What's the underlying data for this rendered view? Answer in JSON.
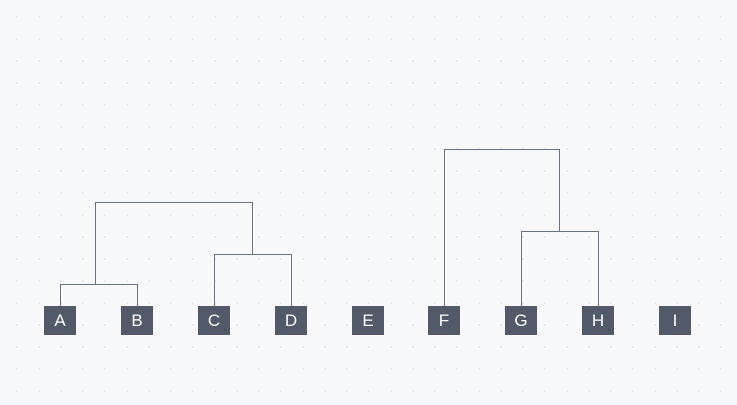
{
  "diagram": {
    "leaves": [
      "A",
      "B",
      "C",
      "D",
      "E",
      "F",
      "G",
      "H",
      "I"
    ],
    "colors": {
      "leaf_fill": "#525a69",
      "leaf_text": "#ffffff",
      "link": "#6b7280",
      "background": "#f8f9fa"
    }
  }
}
